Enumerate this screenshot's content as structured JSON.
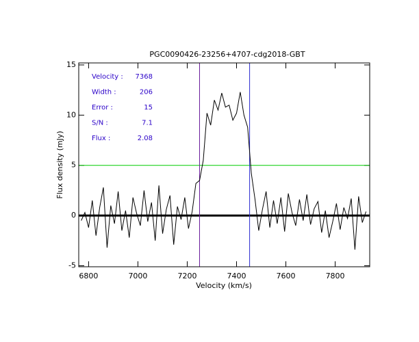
{
  "chart_data": {
    "type": "line",
    "title": "PGC0090426-23256+4707-cdg2018-GBT",
    "x_label": "Velocity (km/s)",
    "y_label": "Flux density (mJy)",
    "x": [
      6770,
      6785,
      6800,
      6815,
      6830,
      6845,
      6860,
      6875,
      6890,
      6905,
      6920,
      6935,
      6950,
      6965,
      6980,
      6995,
      7010,
      7025,
      7040,
      7055,
      7070,
      7085,
      7100,
      7115,
      7130,
      7145,
      7160,
      7175,
      7190,
      7205,
      7220,
      7235,
      7250,
      7265,
      7280,
      7295,
      7310,
      7325,
      7340,
      7355,
      7370,
      7385,
      7400,
      7415,
      7430,
      7445,
      7460,
      7475,
      7490,
      7505,
      7520,
      7535,
      7550,
      7565,
      7580,
      7595,
      7610,
      7625,
      7640,
      7655,
      7670,
      7685,
      7700,
      7715,
      7730,
      7745,
      7760,
      7775,
      7790,
      7805,
      7820,
      7835,
      7850,
      7865,
      7880,
      7895,
      7910,
      7925
    ],
    "series": [
      {
        "color": "#000000",
        "values": [
          -0.5,
          0.3,
          -1.2,
          1.5,
          -2.0,
          0.8,
          2.8,
          -3.2,
          1.0,
          -0.8,
          2.4,
          -1.5,
          0.5,
          -2.2,
          1.8,
          0.2,
          -1.0,
          2.5,
          -0.6,
          1.3,
          -2.5,
          3.0,
          -1.8,
          0.6,
          2.0,
          -2.9,
          0.9,
          -0.4,
          1.8,
          -1.3,
          0.4,
          3.2,
          3.5,
          5.5,
          10.2,
          9.0,
          11.5,
          10.5,
          12.2,
          10.8,
          11.0,
          9.5,
          10.2,
          12.3,
          10.0,
          8.8,
          4.2,
          1.6,
          -1.5,
          0.6,
          2.4,
          -1.2,
          1.5,
          -0.8,
          1.8,
          -1.6,
          2.2,
          0.3,
          -1.0,
          1.6,
          -0.5,
          2.1,
          -0.9,
          0.7,
          1.4,
          -1.7,
          0.5,
          -2.2,
          -0.6,
          1.2,
          -1.4,
          0.8,
          -0.3,
          1.7,
          -3.4,
          1.9,
          -0.7,
          0.4
        ]
      }
    ],
    "xlim": [
      6760,
      7940
    ],
    "ylim": [
      -5.1,
      15.2
    ],
    "xticks": [
      6800,
      7000,
      7200,
      7400,
      7600,
      7800
    ],
    "yticks": [
      -5,
      0,
      5,
      10,
      15
    ],
    "vlines": [
      {
        "value": 7250,
        "color": "#6a1b9a"
      },
      {
        "value": 7453,
        "color": "#2a2ad0"
      }
    ],
    "hlines": [
      {
        "value": 5,
        "color": "#00cc00"
      },
      {
        "value": 0,
        "color": "#000000"
      }
    ],
    "stats": [
      {
        "label": "Velocity :",
        "value": 7368
      },
      {
        "label": "Width :",
        "value": 206
      },
      {
        "label": "Error :",
        "value": 15
      },
      {
        "label": "S/N :",
        "value": 7.1
      },
      {
        "label": "Flux :",
        "value": 2.08
      }
    ]
  }
}
